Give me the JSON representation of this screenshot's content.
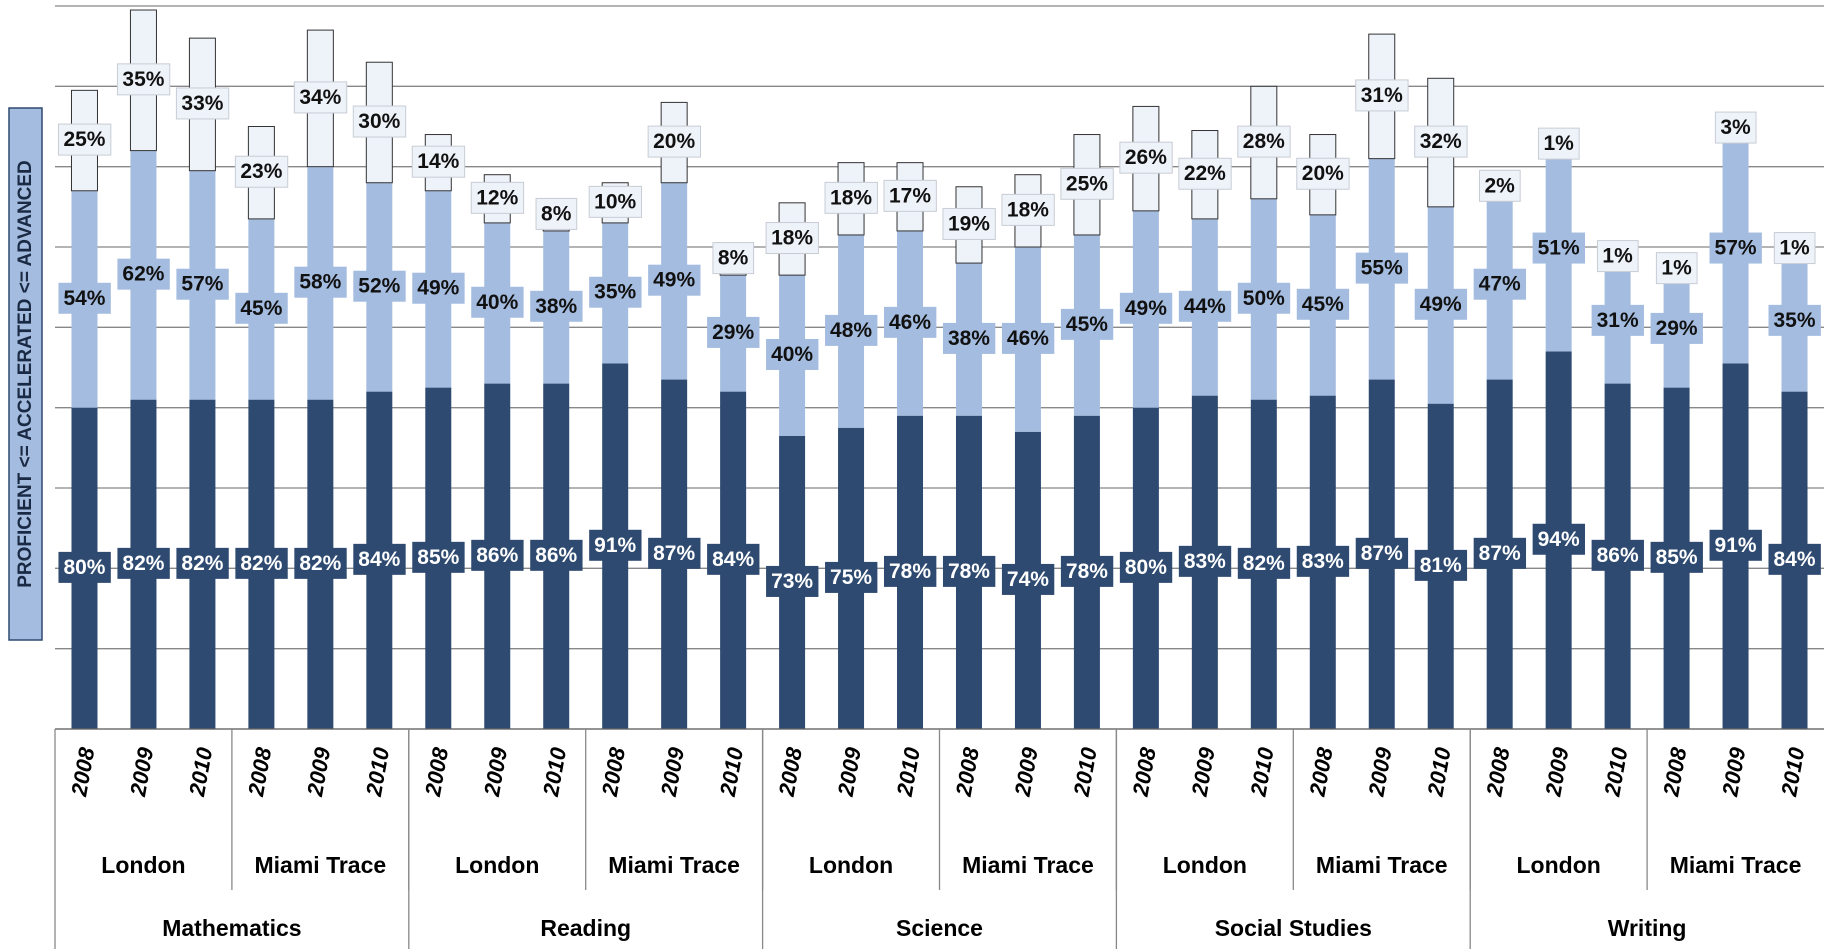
{
  "chart_data": {
    "type": "stacked_bar",
    "y_label": "PROFICIENT <= ACCELERATED <= ADVANCED",
    "categories": [
      "2008",
      "2009",
      "2010",
      "2008",
      "2009",
      "2010",
      "2008",
      "2009",
      "2010",
      "2008",
      "2009",
      "2010",
      "2008",
      "2009",
      "2010",
      "2008",
      "2009",
      "2010",
      "2008",
      "2009",
      "2010",
      "2008",
      "2009",
      "2010",
      "2008",
      "2009",
      "2010",
      "2008",
      "2009",
      "2010"
    ],
    "schools": [
      "London",
      "Miami Trace",
      "London",
      "Miami Trace",
      "London",
      "Miami Trace",
      "London",
      "Miami Trace",
      "London",
      "Miami Trace"
    ],
    "subjects": [
      "Mathematics",
      "Reading",
      "Science",
      "Social Studies",
      "Writing"
    ],
    "series": [
      {
        "color": "#2e4a70",
        "values": [
          80,
          82,
          82,
          82,
          82,
          84,
          85,
          86,
          86,
          91,
          87,
          84,
          73,
          75,
          78,
          78,
          74,
          78,
          80,
          83,
          82,
          83,
          87,
          81,
          87,
          94,
          86,
          85,
          91,
          84
        ],
        "value_labels": [
          "80%",
          "82%",
          "82%",
          "82%",
          "82%",
          "84%",
          "85%",
          "86%",
          "86%",
          "91%",
          "87%",
          "84%",
          "73%",
          "75%",
          "78%",
          "78%",
          "74%",
          "78%",
          "80%",
          "83%",
          "82%",
          "83%",
          "87%",
          "81%",
          "87%",
          "94%",
          "86%",
          "85%",
          "91%",
          "84%"
        ]
      },
      {
        "color": "#a4bcdf",
        "values": [
          54,
          62,
          57,
          45,
          58,
          52,
          49,
          40,
          38,
          35,
          49,
          29,
          40,
          48,
          46,
          38,
          46,
          45,
          49,
          44,
          50,
          45,
          55,
          49,
          47,
          51,
          31,
          29,
          57,
          35
        ],
        "value_labels": [
          "54%",
          "62%",
          "57%",
          "45%",
          "58%",
          "52%",
          "49%",
          "40%",
          "38%",
          "35%",
          "49%",
          "29%",
          "40%",
          "48%",
          "46%",
          "38%",
          "46%",
          "45%",
          "49%",
          "44%",
          "50%",
          "45%",
          "55%",
          "49%",
          "47%",
          "51%",
          "31%",
          "29%",
          "57%",
          "35%"
        ]
      },
      {
        "color": "#eef2f9",
        "values": [
          25,
          35,
          33,
          23,
          34,
          30,
          14,
          12,
          8,
          10,
          20,
          8,
          18,
          18,
          17,
          19,
          18,
          25,
          26,
          22,
          28,
          20,
          31,
          32,
          2,
          1,
          1,
          1,
          3,
          1
        ],
        "value_labels": [
          "25%",
          "35%",
          "33%",
          "23%",
          "34%",
          "30%",
          "14%",
          "12%",
          "8%",
          "10%",
          "20%",
          "8%",
          "18%",
          "18%",
          "17%",
          "19%",
          "18%",
          "25%",
          "26%",
          "22%",
          "28%",
          "20%",
          "31%",
          "32%",
          "2%",
          "1%",
          "1%",
          "1%",
          "3%",
          "1%"
        ]
      }
    ],
    "ylim": [
      0,
      180
    ],
    "yticks": [
      0,
      20,
      40,
      60,
      80,
      100,
      120,
      140,
      160,
      180
    ],
    "grid": true
  }
}
